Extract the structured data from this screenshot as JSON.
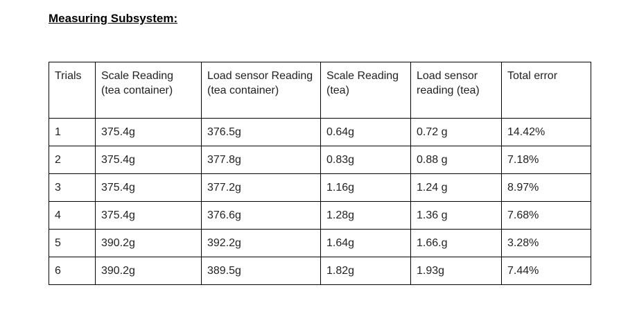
{
  "document": {
    "heading": "Measuring Subsystem:"
  },
  "table": {
    "headers": [
      "Trials",
      "Scale Reading (tea container)",
      "Load sensor Reading (tea container)",
      "Scale Reading (tea)",
      "Load sensor reading (tea)",
      "Total error"
    ],
    "rows": [
      [
        "1",
        "375.4g",
        "376.5g",
        "0.64g",
        "0.72 g",
        "14.42%"
      ],
      [
        "2",
        "375.4g",
        "377.8g",
        "0.83g",
        "0.88 g",
        "7.18%"
      ],
      [
        "3",
        "375.4g",
        "377.2g",
        "1.16g",
        "1.24 g",
        "8.97%"
      ],
      [
        "4",
        "375.4g",
        "376.6g",
        "1.28g",
        "1.36 g",
        "7.68%"
      ],
      [
        "5",
        "390.2g",
        "392.2g",
        "1.64g",
        "1.66.g",
        "3.28%"
      ],
      [
        "6",
        "390.2g",
        "389.5g",
        "1.82g",
        "1.93g",
        "7.44%"
      ]
    ]
  }
}
